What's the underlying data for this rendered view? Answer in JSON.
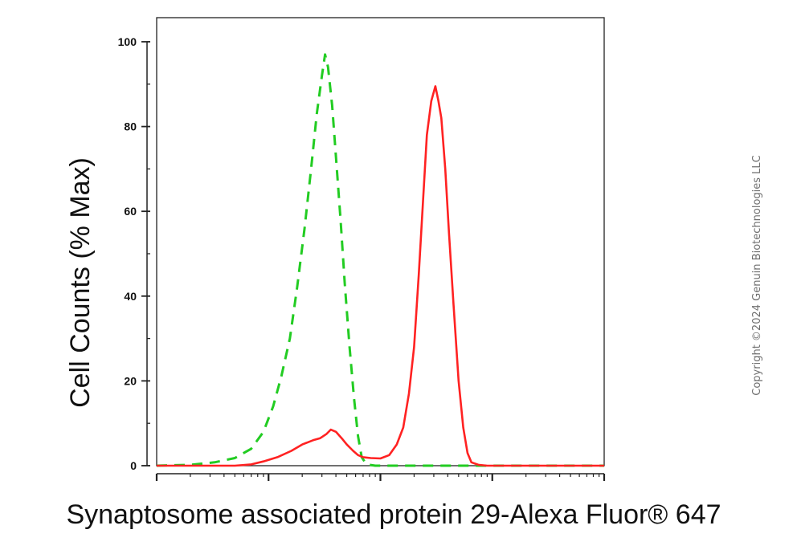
{
  "copyright": "Copyright ©2024 Genuin Biotechnologies LLC",
  "chart_data": {
    "type": "line",
    "xlabel": "Synaptosome associated protein 29-Alexa Fluor® 647",
    "ylabel": "Cell Counts (% Max)",
    "x_scale": "log",
    "xlim": [
      1,
      10000
    ],
    "ylim": [
      0,
      100
    ],
    "y_ticks": [
      0,
      20,
      40,
      60,
      80,
      100
    ],
    "y_tick_labels": [
      "0",
      "20",
      "40",
      "60",
      "80",
      "100"
    ],
    "x_tick_labels": [
      "",
      "",
      "",
      "",
      ""
    ],
    "grid": false,
    "legend": "none",
    "series": [
      {
        "color": "#22cc22",
        "line_style": "dashed",
        "points": [
          [
            1,
            0
          ],
          [
            2,
            0.2
          ],
          [
            3.3,
            0.8
          ],
          [
            5,
            1.8
          ],
          [
            7,
            4
          ],
          [
            9,
            8
          ],
          [
            11,
            14
          ],
          [
            13,
            21
          ],
          [
            15.5,
            30
          ],
          [
            18,
            42
          ],
          [
            21,
            56
          ],
          [
            24,
            70
          ],
          [
            27,
            83
          ],
          [
            30,
            92
          ],
          [
            32,
            97
          ],
          [
            34,
            94
          ],
          [
            37,
            85
          ],
          [
            40,
            73
          ],
          [
            44,
            58
          ],
          [
            48,
            43
          ],
          [
            53,
            28
          ],
          [
            58,
            16
          ],
          [
            63,
            7
          ],
          [
            68,
            2
          ],
          [
            75,
            0.3
          ],
          [
            90,
            0
          ],
          [
            150,
            0
          ],
          [
            500,
            0
          ],
          [
            10000,
            0
          ]
        ]
      },
      {
        "color": "#ff2222",
        "line_style": "solid",
        "points": [
          [
            1,
            0
          ],
          [
            5,
            0
          ],
          [
            7,
            0.3
          ],
          [
            9,
            1
          ],
          [
            12,
            2
          ],
          [
            16,
            3.5
          ],
          [
            20,
            5
          ],
          [
            25,
            6
          ],
          [
            29,
            6.5
          ],
          [
            33,
            7.5
          ],
          [
            36,
            8.5
          ],
          [
            40,
            8
          ],
          [
            45,
            6.5
          ],
          [
            50,
            5
          ],
          [
            57,
            3.5
          ],
          [
            63,
            2.5
          ],
          [
            70,
            2
          ],
          [
            82,
            1.8
          ],
          [
            100,
            1.7
          ],
          [
            120,
            2.5
          ],
          [
            140,
            5
          ],
          [
            160,
            9
          ],
          [
            180,
            17
          ],
          [
            200,
            28
          ],
          [
            220,
            45
          ],
          [
            240,
            62
          ],
          [
            260,
            78
          ],
          [
            285,
            86
          ],
          [
            310,
            89.5
          ],
          [
            330,
            86
          ],
          [
            350,
            82
          ],
          [
            380,
            70
          ],
          [
            410,
            55
          ],
          [
            450,
            38
          ],
          [
            500,
            20
          ],
          [
            550,
            9
          ],
          [
            600,
            3
          ],
          [
            650,
            0.8
          ],
          [
            750,
            0.2
          ],
          [
            900,
            0
          ],
          [
            10000,
            0
          ]
        ]
      }
    ]
  }
}
